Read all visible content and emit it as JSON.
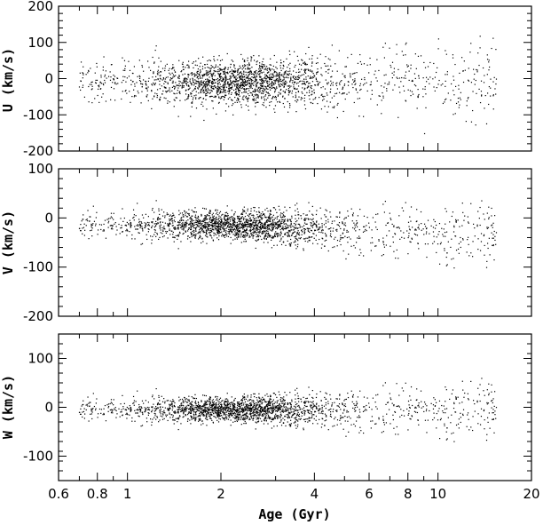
{
  "chart_data": [
    {
      "type": "scatter",
      "ylabel": "U (km/s)",
      "ylim": [
        -200,
        200
      ],
      "yticks": [
        200,
        100,
        0,
        -100,
        -200
      ],
      "xscale": "log",
      "xlim": [
        0.6,
        20
      ],
      "xticks": [
        "0.6",
        "0.8",
        "1",
        "2",
        "4",
        "6",
        "8",
        "10",
        "20"
      ],
      "n_points": 2200,
      "profile": {
        "x_range_gyr": [
          0.7,
          15.5
        ],
        "dense_center_gyr": 2.3,
        "center_km_s": -10,
        "spread_young_km_s": 28,
        "spread_old_km_s": 55
      }
    },
    {
      "type": "scatter",
      "ylabel": "V (km/s)",
      "ylim": [
        -200,
        100
      ],
      "yticks": [
        100,
        0,
        -100,
        -200
      ],
      "xscale": "log",
      "xlim": [
        0.6,
        20
      ],
      "xticks": [
        "0.6",
        "0.8",
        "1",
        "2",
        "4",
        "6",
        "8",
        "10",
        "20"
      ],
      "n_points": 2200,
      "profile": {
        "x_range_gyr": [
          0.7,
          15.5
        ],
        "dense_center_gyr": 2.3,
        "center_young_km_s": -15,
        "center_old_km_s": -35,
        "spread_young_km_s": 14,
        "spread_old_km_s": 32
      }
    },
    {
      "type": "scatter",
      "ylabel": "W (km/s)",
      "ylim": [
        -150,
        150
      ],
      "yticks": [
        100,
        0,
        -100
      ],
      "xscale": "log",
      "xlim": [
        0.6,
        20
      ],
      "xticks": [
        "0.6",
        "0.8",
        "1",
        "2",
        "4",
        "6",
        "8",
        "10",
        "20"
      ],
      "xlabel": "Age (Gyr)",
      "n_points": 2200,
      "profile": {
        "x_range_gyr": [
          0.7,
          15.5
        ],
        "dense_center_gyr": 2.3,
        "center_km_s": -5,
        "spread_young_km_s": 12,
        "spread_old_km_s": 30
      }
    }
  ]
}
